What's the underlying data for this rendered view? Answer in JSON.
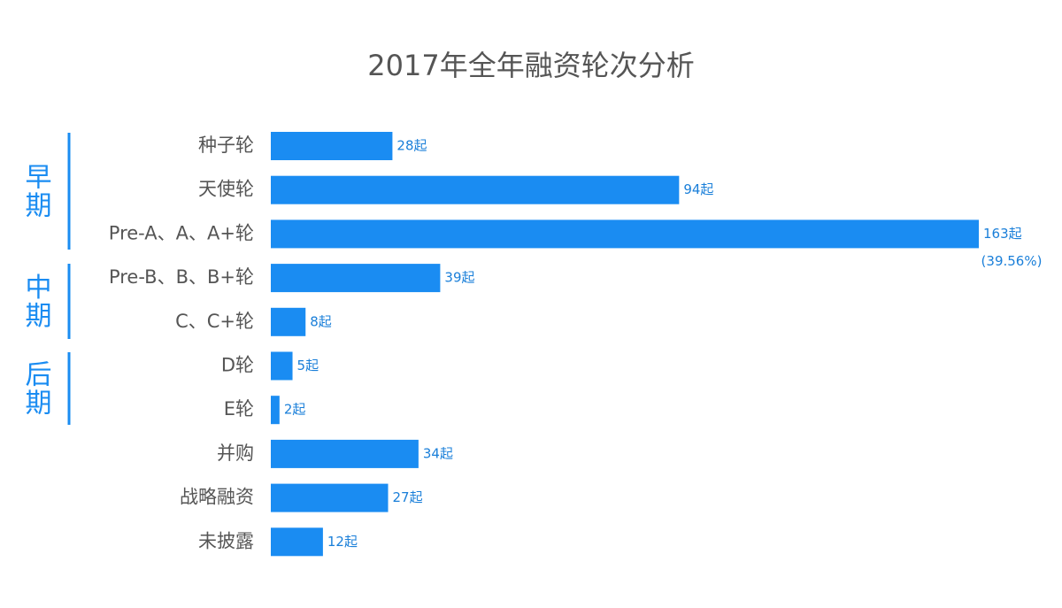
{
  "chart_data": {
    "type": "bar",
    "orientation": "horizontal",
    "title": "2017年全年融资轮次分析",
    "categories": [
      "种子轮",
      "天使轮",
      "Pre-A、A、A+轮",
      "Pre-B、B、B+轮",
      "C、C+轮",
      "D轮",
      "E轮",
      "并购",
      "战略融资",
      "未披露"
    ],
    "values": [
      28,
      94,
      163,
      39,
      8,
      5,
      2,
      34,
      27,
      12
    ],
    "value_labels": [
      "28起",
      "94起",
      "163起",
      "39起",
      "8起",
      "5起",
      "2起",
      "34起",
      "27起",
      "12起"
    ],
    "color": "#1a8cf2",
    "annotations": [
      "(39.56%)"
    ],
    "groups": [
      "早期",
      "中期",
      "后期"
    ]
  }
}
